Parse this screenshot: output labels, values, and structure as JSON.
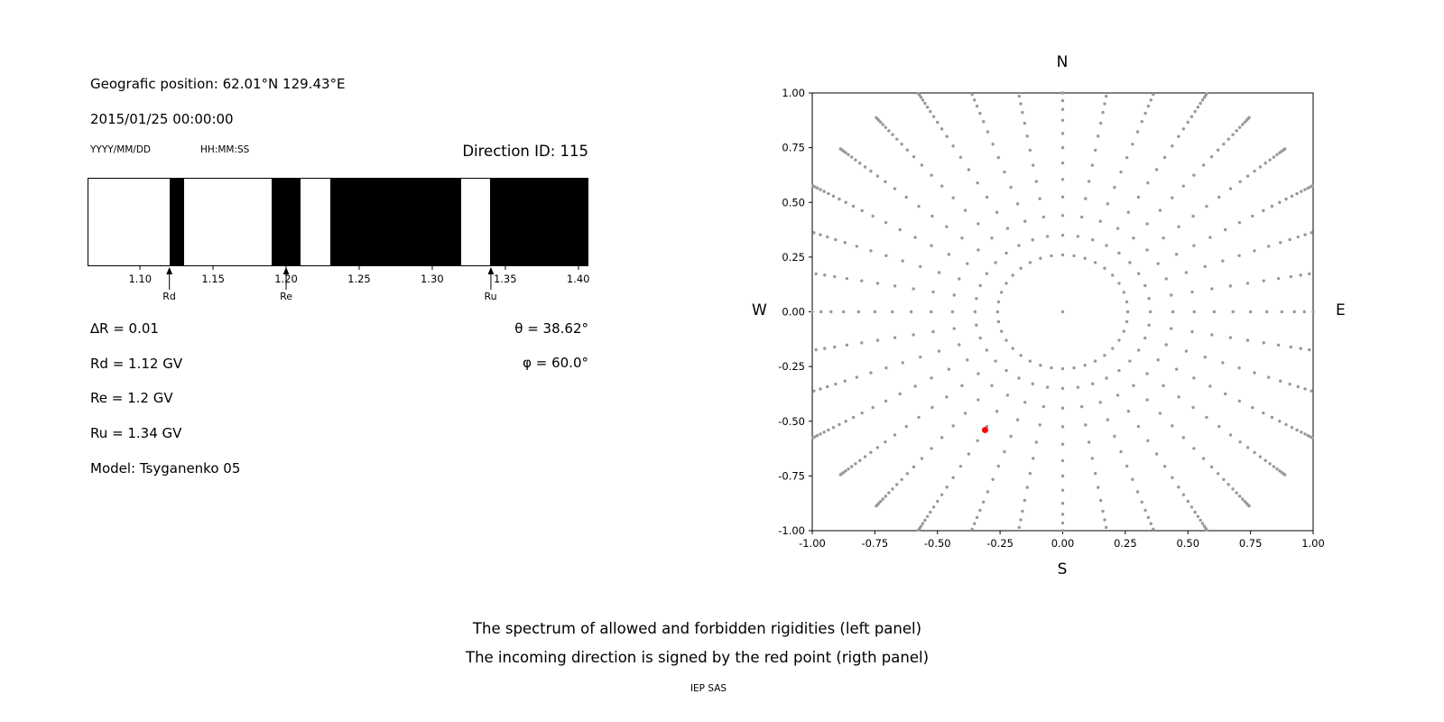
{
  "info": {
    "geo_position": "Geografic position: 62.01°N 129.43°E",
    "datetime": "2015/01/25 00:00:00",
    "date_format_label": "YYYY/MM/DD",
    "time_format_label": "HH:MM:SS",
    "direction_id": "Direction ID: 115",
    "delta_r": "∆R = 0.01",
    "rd": "Rd = 1.12 GV",
    "re": "Re = 1.2 GV",
    "ru": "Ru = 1.34 GV",
    "model": "Model: Tsyganenko 05",
    "theta": "θ = 38.62°",
    "phi": "φ = 60.0°"
  },
  "caption": {
    "line1": "The spectrum of allowed and forbidden rigidities (left panel)",
    "line2": "The incoming direction is signed by the red point (rigth panel)",
    "credit": "IEP SAS"
  },
  "chart_data": [
    {
      "type": "bar",
      "subtype": "rigidity-band-spectrum",
      "description": "Black bands = allowed rigidities, white = forbidden",
      "xlim": [
        1.064,
        1.407
      ],
      "xticks": [
        1.1,
        1.15,
        1.2,
        1.25,
        1.3,
        1.35,
        1.4
      ],
      "black_bands_allowed": [
        [
          1.12,
          1.13
        ],
        [
          1.19,
          1.21
        ],
        [
          1.23,
          1.32
        ],
        [
          1.34,
          1.407
        ]
      ],
      "markers": [
        {
          "label": "Rd",
          "value": 1.12
        },
        {
          "label": "Re",
          "value": 1.2
        },
        {
          "label": "Ru",
          "value": 1.34
        }
      ],
      "colors": {
        "allowed": "#000000",
        "forbidden": "#ffffff",
        "frame": "#000000"
      }
    },
    {
      "type": "scatter",
      "description": "Radial spokes of asymptotic direction dots every 10 degrees; red point marks incoming direction",
      "xlim": [
        -1,
        1
      ],
      "ylim": [
        -1,
        1
      ],
      "xticks": [
        -1.0,
        -0.75,
        -0.5,
        -0.25,
        0.0,
        0.25,
        0.5,
        0.75,
        1.0
      ],
      "yticks": [
        -1.0,
        -0.75,
        -0.5,
        -0.25,
        0.0,
        0.25,
        0.5,
        0.75,
        1.0
      ],
      "compass": {
        "n": "N",
        "s": "S",
        "e": "E",
        "w": "W"
      },
      "spokes": {
        "azimuth_step_deg": 10,
        "radii": [
          0.26,
          0.35,
          0.44,
          0.525,
          0.605,
          0.68,
          0.75,
          0.815,
          0.875,
          0.925,
          0.965,
          1.0,
          1.03,
          1.057,
          1.08,
          1.1,
          1.117,
          1.131,
          1.142,
          1.151,
          1.158
        ]
      },
      "center_dot": [
        0,
        0
      ],
      "red_point": {
        "x": -0.31,
        "y": -0.54
      },
      "colors": {
        "dots": "#999999",
        "red_point": "#ff0000"
      }
    }
  ]
}
